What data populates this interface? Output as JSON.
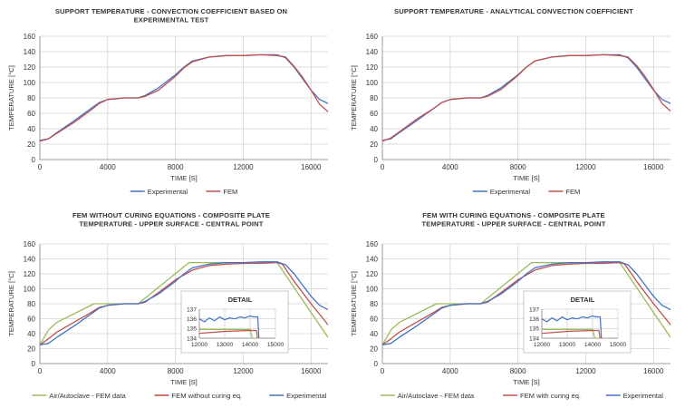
{
  "chart_data": [
    {
      "type": "line",
      "title": [
        "SUPPORT TEMPERATURE - CONVECTION COEFFICIENT BASED ON",
        "EXPERIMENTAL TEST"
      ],
      "xlabel": "TIME [S]",
      "ylabel": "TEMPERATURE [°C]",
      "xlim": [
        0,
        17000
      ],
      "ylim": [
        0,
        160
      ],
      "xticks": [
        0,
        4000,
        8000,
        12000,
        16000
      ],
      "yticks": [
        0,
        20,
        40,
        60,
        80,
        100,
        120,
        140,
        160
      ],
      "grid": true,
      "legend": "bottom",
      "series": [
        {
          "name": "Experimental",
          "color": "#4472c4",
          "x": [
            0,
            500,
            1000,
            2000,
            3000,
            3500,
            4000,
            5000,
            5800,
            6200,
            7000,
            8000,
            8500,
            9000,
            10000,
            11000,
            12000,
            13000,
            14000,
            14500,
            15000,
            15500,
            16000,
            16500,
            17000
          ],
          "y": [
            25,
            27,
            35,
            50,
            66,
            74,
            78,
            80,
            80,
            83,
            93,
            110,
            120,
            128,
            133,
            135,
            135,
            136,
            136,
            132,
            120,
            105,
            90,
            78,
            73
          ]
        },
        {
          "name": "FEM",
          "color": "#c0504d",
          "x": [
            0,
            500,
            1000,
            2000,
            3000,
            3500,
            4000,
            5000,
            5800,
            6200,
            7000,
            8000,
            8500,
            9000,
            10000,
            11000,
            12000,
            13000,
            14000,
            14500,
            15000,
            15500,
            16000,
            16500,
            17000
          ],
          "y": [
            24,
            27,
            34,
            48,
            64,
            73,
            78,
            80,
            80,
            82,
            90,
            108,
            119,
            127,
            133,
            135,
            135,
            136,
            135,
            133,
            121,
            107,
            90,
            72,
            62
          ]
        }
      ]
    },
    {
      "type": "line",
      "title": [
        "SUPPORT TEMPERATURE - ANALYTICAL CONVECTION COEFFICIENT"
      ],
      "xlabel": "TIME [S]",
      "ylabel": "TEMPERATURE [°C]",
      "xlim": [
        0,
        17000
      ],
      "ylim": [
        0,
        160
      ],
      "xticks": [
        0,
        4000,
        8000,
        12000,
        16000
      ],
      "yticks": [
        0,
        20,
        40,
        60,
        80,
        100,
        120,
        140,
        160
      ],
      "grid": true,
      "legend": "bottom",
      "series": [
        {
          "name": "Experimental",
          "color": "#4472c4",
          "x": [
            0,
            500,
            1000,
            2000,
            3000,
            3500,
            4000,
            5000,
            5800,
            6200,
            7000,
            8000,
            8500,
            9000,
            10000,
            11000,
            12000,
            13000,
            14000,
            14500,
            15000,
            15500,
            16000,
            16500,
            17000
          ],
          "y": [
            25,
            27,
            35,
            50,
            66,
            74,
            78,
            80,
            80,
            83,
            93,
            110,
            120,
            128,
            133,
            135,
            135,
            136,
            136,
            132,
            120,
            105,
            90,
            78,
            73
          ]
        },
        {
          "name": "FEM",
          "color": "#c0504d",
          "x": [
            0,
            500,
            1000,
            2000,
            3000,
            3500,
            4000,
            5000,
            5800,
            6200,
            7000,
            8000,
            8500,
            9000,
            10000,
            11000,
            12000,
            13000,
            14000,
            14500,
            15000,
            15500,
            16000,
            16500,
            17000
          ],
          "y": [
            24,
            28,
            36,
            52,
            66,
            74,
            78,
            80,
            80,
            82,
            91,
            109,
            120,
            128,
            133,
            135,
            135,
            136,
            135,
            133,
            122,
            108,
            91,
            73,
            63
          ]
        }
      ]
    },
    {
      "type": "line",
      "title": [
        "FEM WITHOUT CURING EQUATIONS - COMPOSITE PLATE",
        "TEMPERATURE - UPPER SURFACE - CENTRAL POINT"
      ],
      "xlabel": "TIME [S]",
      "ylabel": "TEMPERATURE [°C]",
      "xlim": [
        0,
        17000
      ],
      "ylim": [
        0,
        160
      ],
      "xticks": [
        0,
        4000,
        8000,
        12000,
        16000
      ],
      "yticks": [
        0,
        20,
        40,
        60,
        80,
        100,
        120,
        140,
        160
      ],
      "grid": true,
      "legend": "bottom",
      "series": [
        {
          "name": "Air/Autoclave - FEM data",
          "color": "#9bbb59",
          "x": [
            0,
            500,
            1000,
            3200,
            5800,
            8800,
            14000,
            17000
          ],
          "y": [
            25,
            45,
            55,
            80,
            80,
            135,
            135,
            35
          ]
        },
        {
          "name": "FEM without curing eq.",
          "color": "#c0504d",
          "x": [
            0,
            500,
            1000,
            2000,
            3000,
            3500,
            4000,
            5000,
            5800,
            6200,
            7000,
            8000,
            9000,
            10000,
            11000,
            12000,
            13000,
            14000,
            14300,
            15000,
            16000,
            17000
          ],
          "y": [
            25,
            33,
            42,
            55,
            68,
            75,
            78,
            80,
            80,
            82,
            95,
            112,
            125,
            131,
            133,
            134,
            134,
            135,
            133,
            110,
            80,
            52
          ]
        },
        {
          "name": "Experimental",
          "color": "#4472c4",
          "x": [
            0,
            500,
            1000,
            2000,
            3000,
            3500,
            4000,
            5000,
            5800,
            6200,
            7000,
            8000,
            8500,
            9000,
            10000,
            11000,
            12000,
            13000,
            14000,
            14500,
            15000,
            15500,
            16000,
            16500,
            17000
          ],
          "y": [
            25,
            27,
            35,
            50,
            66,
            74,
            78,
            80,
            80,
            83,
            93,
            110,
            120,
            128,
            133,
            135,
            135,
            136,
            136,
            132,
            120,
            105,
            90,
            78,
            72
          ]
        }
      ],
      "detail": {
        "title": "DETAIL",
        "xlim": [
          12000,
          15000
        ],
        "ylim": [
          134,
          137
        ],
        "xticks": [
          12000,
          13000,
          14000,
          15000
        ],
        "yticks": [
          134,
          135,
          136,
          137
        ],
        "series": [
          {
            "name": "Air/Autoclave - FEM data",
            "color": "#9bbb59",
            "x": [
              12000,
              14000,
              14100
            ],
            "y": [
              134.9,
              134.9,
              133.9
            ]
          },
          {
            "name": "FEM without curing eq.",
            "color": "#c0504d",
            "x": [
              12000,
              12500,
              13000,
              13500,
              14000,
              14250,
              14300
            ],
            "y": [
              134.5,
              134.6,
              134.7,
              134.75,
              134.8,
              134.8,
              133.9
            ]
          },
          {
            "name": "Experimental",
            "color": "#4472c4",
            "x": [
              12000,
              12200,
              12400,
              12600,
              12800,
              13000,
              13200,
              13400,
              13600,
              13800,
              14000,
              14150,
              14300,
              14350
            ],
            "y": [
              136.0,
              135.7,
              136.1,
              135.8,
              136.2,
              135.9,
              136.1,
              136.0,
              136.2,
              136.1,
              136.3,
              136.2,
              136.2,
              133.9
            ]
          }
        ]
      }
    },
    {
      "type": "line",
      "title": [
        "FEM WITH CURING EQUATIONS - COMPOSITE PLATE",
        "TEMPERATURE - UPPER SURFACE - CENTRAL POINT"
      ],
      "xlabel": "TIME [S]",
      "ylabel": "TEMPERATURE [°C]",
      "xlim": [
        0,
        17000
      ],
      "ylim": [
        0,
        160
      ],
      "xticks": [
        0,
        4000,
        8000,
        12000,
        16000
      ],
      "yticks": [
        0,
        20,
        40,
        60,
        80,
        100,
        120,
        140,
        160
      ],
      "grid": true,
      "legend": "bottom",
      "series": [
        {
          "name": "Air/Autoclave - FEM data",
          "color": "#9bbb59",
          "x": [
            0,
            500,
            1000,
            3200,
            5800,
            8800,
            14000,
            17000
          ],
          "y": [
            25,
            45,
            55,
            80,
            80,
            135,
            135,
            35
          ]
        },
        {
          "name": "FEM with curing eq.",
          "color": "#c0504d",
          "x": [
            0,
            500,
            1000,
            2000,
            3000,
            3500,
            4000,
            5000,
            5800,
            6200,
            7000,
            8000,
            9000,
            10000,
            11000,
            12000,
            13000,
            14000,
            14300,
            15000,
            16000,
            17000
          ],
          "y": [
            25,
            33,
            42,
            55,
            68,
            75,
            78,
            80,
            80,
            82,
            95,
            112,
            125,
            131,
            133,
            134,
            134,
            135,
            133,
            110,
            80,
            52
          ]
        },
        {
          "name": "Experimental",
          "color": "#4472c4",
          "x": [
            0,
            500,
            1000,
            2000,
            3000,
            3500,
            4000,
            5000,
            5800,
            6200,
            7000,
            8000,
            8500,
            9000,
            10000,
            11000,
            12000,
            13000,
            14000,
            14500,
            15000,
            15500,
            16000,
            16500,
            17000
          ],
          "y": [
            25,
            27,
            35,
            50,
            66,
            74,
            78,
            80,
            80,
            83,
            93,
            110,
            120,
            128,
            133,
            135,
            135,
            136,
            136,
            132,
            120,
            105,
            90,
            78,
            72
          ]
        }
      ],
      "detail": {
        "title": "DETAIL",
        "xlim": [
          12000,
          15000
        ],
        "ylim": [
          134,
          137
        ],
        "xticks": [
          12000,
          13000,
          14000,
          15000
        ],
        "yticks": [
          134,
          135,
          136,
          137
        ],
        "series": [
          {
            "name": "Air/Autoclave - FEM data",
            "color": "#9bbb59",
            "x": [
              12000,
              14000,
              14100
            ],
            "y": [
              134.9,
              134.9,
              133.9
            ]
          },
          {
            "name": "FEM with curing eq.",
            "color": "#c0504d",
            "x": [
              12000,
              12500,
              13000,
              13500,
              14000,
              14250,
              14300
            ],
            "y": [
              134.5,
              134.6,
              134.7,
              134.75,
              134.8,
              134.8,
              133.9
            ]
          },
          {
            "name": "Experimental",
            "color": "#4472c4",
            "x": [
              12000,
              12200,
              12400,
              12600,
              12800,
              13000,
              13200,
              13400,
              13600,
              13800,
              14000,
              14150,
              14300,
              14350
            ],
            "y": [
              136.0,
              135.7,
              136.1,
              135.8,
              136.2,
              135.9,
              136.1,
              136.0,
              136.2,
              136.1,
              136.3,
              136.2,
              136.2,
              133.9
            ]
          }
        ]
      }
    }
  ]
}
